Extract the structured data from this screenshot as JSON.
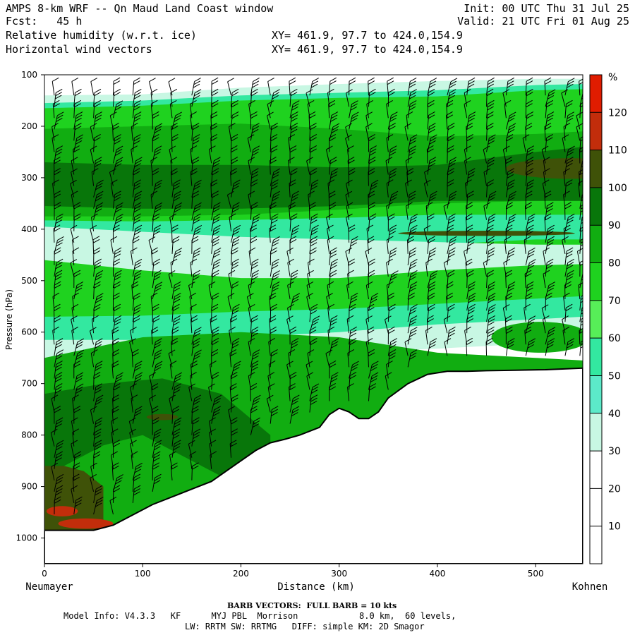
{
  "header": {
    "title": "AMPS 8-km WRF -- Qn Maud Land Coast window",
    "forecast": "Fcst:   45 h",
    "field1": "Relative humidity (w.r.t. ice)",
    "field2": "Horizontal wind vectors",
    "init": "Init: 00 UTC Thu 31 Jul 25",
    "valid": "Valid: 21 UTC Fri 01 Aug 25",
    "xy1": "XY= 461.9, 97.7 to 424.0,154.9",
    "xy2": "XY= 461.9, 97.7 to 424.0,154.9"
  },
  "chart_data": {
    "type": "heatmap",
    "xlabel": "Distance (km)",
    "ylabel": "Pressure (hPa)",
    "x_start_label": "Neumayer",
    "x_end_label": "Kohnen",
    "xlim": [
      0,
      548
    ],
    "ylim": [
      1050,
      100
    ],
    "x_ticks": [
      0,
      100,
      200,
      300,
      400,
      500
    ],
    "y_ticks": [
      100,
      200,
      300,
      400,
      500,
      600,
      700,
      800,
      900,
      1000
    ],
    "colorbar": {
      "unit": "%",
      "levels": [
        10,
        20,
        30,
        40,
        50,
        60,
        70,
        80,
        90,
        100,
        110,
        120
      ],
      "colors": [
        "#ffffff",
        "#ffffff",
        "#ffffff",
        "#c8f7e3",
        "#5ceac9",
        "#33e8a0",
        "#57ee58",
        "#1fd21f",
        "#11ad11",
        "#08760a",
        "#3f5208",
        "#c22d0b",
        "#e01c00"
      ]
    },
    "terrain": {
      "x": [
        0,
        20,
        50,
        70,
        90,
        110,
        130,
        150,
        170,
        185,
        200,
        215,
        230,
        245,
        260,
        280,
        290,
        300,
        310,
        320,
        330,
        340,
        350,
        370,
        390,
        410,
        430,
        450,
        480,
        510,
        548
      ],
      "p": [
        985,
        985,
        985,
        975,
        955,
        935,
        920,
        905,
        890,
        870,
        850,
        830,
        815,
        808,
        800,
        785,
        760,
        748,
        755,
        768,
        768,
        755,
        728,
        700,
        682,
        676,
        676,
        675,
        674,
        673,
        670
      ]
    },
    "layers": [
      {
        "value": 30,
        "x": [
          0,
          100,
          200,
          300,
          400,
          500,
          548
        ],
        "p_top": [
          140,
          138,
          125,
          118,
          112,
          108,
          108
        ],
        "p_bottom": [
          655,
          650,
          645,
          640,
          632,
          622,
          620
        ]
      },
      {
        "value": 50,
        "x": [
          0,
          100,
          200,
          300,
          400,
          500,
          548
        ],
        "p_top": [
          155,
          150,
          140,
          135,
          130,
          120,
          118
        ],
        "p_bottom": [
          615,
          615,
          610,
          600,
          585,
          575,
          570
        ]
      },
      {
        "value": 70,
        "x": [
          0,
          100,
          200,
          300,
          400,
          500,
          548
        ],
        "p_top": [
          165,
          160,
          150,
          145,
          142,
          130,
          128
        ],
        "p_bottom": [
          570,
          568,
          560,
          555,
          545,
          535,
          530
        ]
      },
      {
        "value": 50,
        "x": [
          0,
          100,
          200,
          300,
          400,
          500,
          548
        ],
        "p_top": [
          383,
          385,
          382,
          378,
          372,
          372,
          372
        ],
        "p_bottom": [
          430,
          440,
          445,
          440,
          430,
          420,
          420
        ]
      },
      {
        "value": 30,
        "x": [
          0,
          100,
          200,
          300,
          400,
          500,
          548
        ],
        "p_top": [
          395,
          405,
          415,
          420,
          425,
          430,
          430
        ],
        "p_bottom": [
          460,
          480,
          495,
          495,
          480,
          470,
          468
        ]
      },
      {
        "value": 80,
        "x": [
          0,
          100,
          200,
          300,
          400,
          500,
          548
        ],
        "p_top": [
          205,
          200,
          195,
          205,
          220,
          215,
          210
        ],
        "p_bottom": [
          375,
          375,
          372,
          362,
          350,
          345,
          345
        ]
      },
      {
        "value": 90,
        "x": [
          0,
          100,
          200,
          300,
          400,
          500,
          548
        ],
        "p_top": [
          270,
          275,
          275,
          280,
          275,
          250,
          240
        ],
        "p_bottom": [
          355,
          360,
          360,
          355,
          345,
          345,
          345
        ]
      },
      {
        "value": 80,
        "x": [
          0,
          100,
          200,
          300,
          400,
          500,
          548
        ],
        "p_top": [
          650,
          610,
          600,
          610,
          640,
          650,
          655
        ],
        "p_bottom": [
          1000,
          1000,
          1000,
          1000,
          1000,
          1000,
          1000
        ]
      },
      {
        "value": 90,
        "x": [
          0,
          60,
          120,
          180,
          230
        ],
        "p_top": [
          720,
          700,
          690,
          720,
          800
        ],
        "p_bottom": [
          1000,
          1000,
          1000,
          1000,
          1000
        ]
      },
      {
        "value": 80,
        "x": [
          20,
          60,
          100,
          140,
          180
        ],
        "p_top": [
          860,
          820,
          800,
          840,
          880
        ],
        "p_bottom": [
          1000,
          1000,
          1000,
          1000,
          1000
        ]
      },
      {
        "value": 100,
        "x": [
          0,
          20,
          40,
          60
        ],
        "p_top": [
          860,
          860,
          870,
          900
        ],
        "p_bottom": [
          1000,
          1000,
          1000,
          1000
        ]
      }
    ],
    "blobs": [
      {
        "value": 100,
        "x": 120,
        "p": 765,
        "rx": 16,
        "rp": 6
      },
      {
        "value": 100,
        "x": 535,
        "p": 282,
        "rx": 65,
        "rp": 20
      },
      {
        "value": 100,
        "x": 450,
        "p": 408,
        "rx": 90,
        "rp": 5
      },
      {
        "value": 110,
        "x": 18,
        "p": 948,
        "rx": 16,
        "rp": 10
      },
      {
        "value": 110,
        "x": 42,
        "p": 972,
        "rx": 28,
        "rp": 10
      },
      {
        "value": 80,
        "x": 505,
        "p": 610,
        "rx": 50,
        "rp": 30
      }
    ],
    "wind_barbs": {
      "x": [
        10,
        30,
        50,
        70,
        90,
        110,
        130,
        150,
        170,
        190,
        210,
        230,
        250,
        270,
        290,
        310,
        330,
        350,
        370,
        390,
        410,
        430,
        450,
        470,
        490,
        510,
        530,
        545
      ],
      "full_barb_kts": 10
    }
  },
  "footer": {
    "barb": "BARB VECTORS:  FULL BARB = 10 kts",
    "line1": "Model Info: V4.3.3   KF      MYJ PBL  Morrison            8.0 km,  60 levels,",
    "line2": "LW: RRTM SW: RRTMG   DIFF: simple KM: 2D Smagor"
  }
}
